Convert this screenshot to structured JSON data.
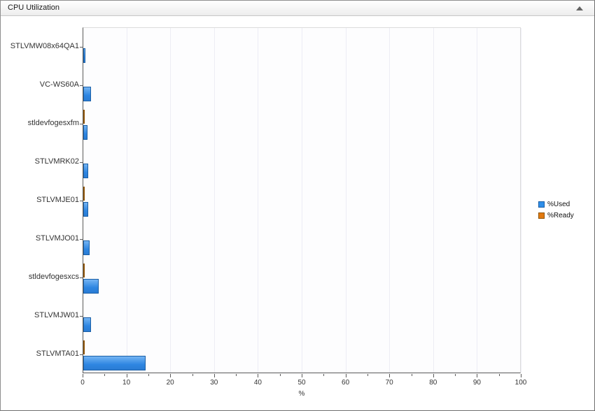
{
  "window": {
    "title": "CPU Utilization"
  },
  "chart_data": {
    "type": "bar",
    "orientation": "horizontal",
    "title": "CPU Utilization",
    "categories": [
      "STLVMW08x64QA1",
      "VC-WS60A",
      "stldevfogesxfm",
      "STLVMRK02",
      "STLVMJE01",
      "STLVMJO01",
      "stldevfogesxcs",
      "STLVMJW01",
      "STLVMTA01"
    ],
    "series": [
      {
        "name": "%Used",
        "color": "#2f8ee9",
        "values": [
          0.5,
          1.7,
          1.0,
          1.1,
          1.1,
          1.5,
          3.5,
          1.8,
          14.2
        ]
      },
      {
        "name": "%Ready",
        "color": "#e2790f",
        "values": [
          0,
          0,
          0.3,
          0,
          0.3,
          0,
          0.3,
          0,
          0.35
        ]
      }
    ],
    "xlabel": "%",
    "xlim": [
      0,
      100
    ],
    "x_major_tick_step": 10,
    "x_minor_tick_step": 5,
    "grid": true,
    "legend_position": "right"
  }
}
